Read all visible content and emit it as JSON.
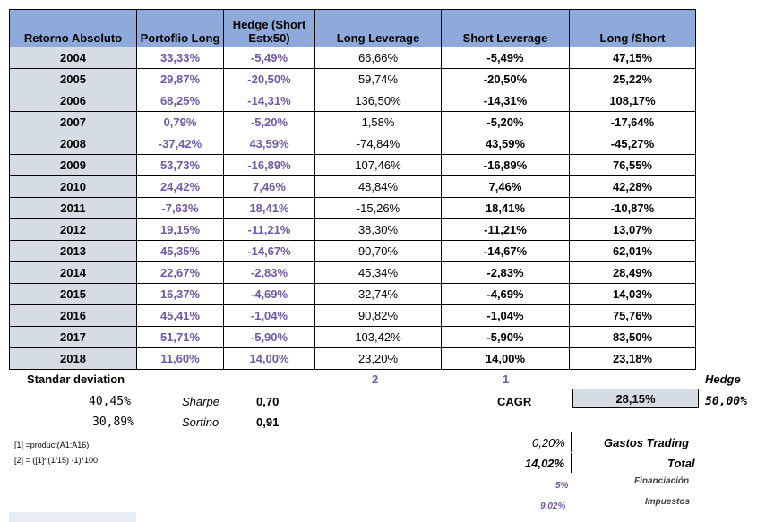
{
  "table": {
    "headers": {
      "retorno": "Retorno Absoluto",
      "long": "Portoflio Long",
      "hedge": "Hedge (Short Estx50)",
      "long_leverage": "Long Leverage",
      "short_leverage": "Short Leverage",
      "long_short": "Long /Short"
    },
    "rows": [
      {
        "year": "2004",
        "long": "33,33%",
        "hedge": "-5,49%",
        "long_leverage": "66,66%",
        "short_leverage": "-5,49%",
        "long_short": "47,15%"
      },
      {
        "year": "2005",
        "long": "29,87%",
        "hedge": "-20,50%",
        "long_leverage": "59,74%",
        "short_leverage": "-20,50%",
        "long_short": "25,22%"
      },
      {
        "year": "2006",
        "long": "68,25%",
        "hedge": "-14,31%",
        "long_leverage": "136,50%",
        "short_leverage": "-14,31%",
        "long_short": "108,17%"
      },
      {
        "year": "2007",
        "long": "0,79%",
        "hedge": "-5,20%",
        "long_leverage": "1,58%",
        "short_leverage": "-5,20%",
        "long_short": "-17,64%"
      },
      {
        "year": "2008",
        "long": "-37,42%",
        "hedge": "43,59%",
        "long_leverage": "-74,84%",
        "short_leverage": "43,59%",
        "long_short": "-45,27%"
      },
      {
        "year": "2009",
        "long": "53,73%",
        "hedge": "-16,89%",
        "long_leverage": "107,46%",
        "short_leverage": "-16,89%",
        "long_short": "76,55%"
      },
      {
        "year": "2010",
        "long": "24,42%",
        "hedge": "7,46%",
        "long_leverage": "48,84%",
        "short_leverage": "7,46%",
        "long_short": "42,28%"
      },
      {
        "year": "2011",
        "long": "-7,63%",
        "hedge": "18,41%",
        "long_leverage": "-15,26%",
        "short_leverage": "18,41%",
        "long_short": "-10,87%"
      },
      {
        "year": "2012",
        "long": "19,15%",
        "hedge": "-11,21%",
        "long_leverage": "38,30%",
        "short_leverage": "-11,21%",
        "long_short": "13,07%"
      },
      {
        "year": "2013",
        "long": "45,35%",
        "hedge": "-14,67%",
        "long_leverage": "90,70%",
        "short_leverage": "-14,67%",
        "long_short": "62,01%"
      },
      {
        "year": "2014",
        "long": "22,67%",
        "hedge": "-2,83%",
        "long_leverage": "45,34%",
        "short_leverage": "-2,83%",
        "long_short": "28,49%"
      },
      {
        "year": "2015",
        "long": "16,37%",
        "hedge": "-4,69%",
        "long_leverage": "32,74%",
        "short_leverage": "-4,69%",
        "long_short": "14,03%"
      },
      {
        "year": "2016",
        "long": "45,41%",
        "hedge": "-1,04%",
        "long_leverage": "90,82%",
        "short_leverage": "-1,04%",
        "long_short": "75,76%"
      },
      {
        "year": "2017",
        "long": "51,71%",
        "hedge": "-5,90%",
        "long_leverage": "103,42%",
        "short_leverage": "-5,90%",
        "long_short": "83,50%"
      },
      {
        "year": "2018",
        "long": "11,60%",
        "hedge": "14,00%",
        "long_leverage": "23,20%",
        "short_leverage": "14,00%",
        "long_short": "23,18%"
      }
    ]
  },
  "stats": {
    "std_label": "Standar deviation",
    "leverage_long": "2",
    "leverage_short": "1",
    "hedge_label": "Hedge",
    "std_value": "40,45%",
    "sharpe_label": "Sharpe",
    "sharpe_value": "0,70",
    "cagr_label": "CAGR",
    "cagr_value": "28,15%",
    "hedge_value": "50,00%",
    "downside_value": "30,89%",
    "sortino_label": "Sortino",
    "sortino_value": "0,91"
  },
  "notes": {
    "note1": "[1] =product(A1:A16)",
    "note2": "[2] = ([1]^(1/15) -1)*100"
  },
  "costs": {
    "trading_value": "0,20%",
    "trading_label": "Gastos Trading",
    "total_value": "14,02%",
    "total_label": "Total",
    "financiacion_value": "5%",
    "financiacion_label": "Financiación",
    "impuestos_value": "9,02%",
    "impuestos_label": "Impuestos"
  },
  "colors": {
    "header_bg": "#8eaadb",
    "year_bg": "#d6dce4",
    "accent_purple": "#7058a8"
  }
}
